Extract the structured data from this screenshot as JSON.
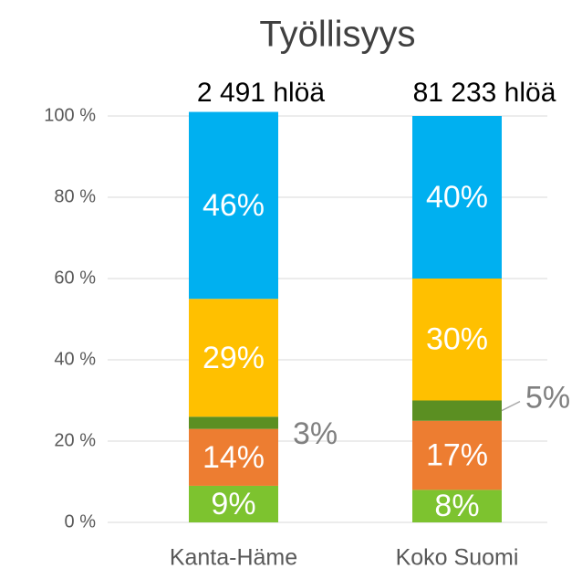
{
  "chart_data": {
    "type": "stacked_bar",
    "title": "Työllisyys",
    "categories": [
      "Kanta-Häme",
      "Koko Suomi"
    ],
    "annotations": [
      "2 491 hlöä",
      "81 233 hlöä"
    ],
    "series": [
      {
        "color": "#7dc32f",
        "values": [
          9,
          8
        ],
        "value_labels": [
          "9%",
          "8%"
        ]
      },
      {
        "color": "#ed7d31",
        "values": [
          14,
          17
        ],
        "value_labels": [
          "14%",
          "17%"
        ]
      },
      {
        "color": "#5b8f22",
        "values": [
          3,
          5
        ],
        "value_labels": [
          "3%",
          "5%"
        ]
      },
      {
        "color": "#ffc000",
        "values": [
          29,
          30
        ],
        "value_labels": [
          "29%",
          "30%"
        ]
      },
      {
        "color": "#00b0f0",
        "values": [
          46,
          40
        ],
        "value_labels": [
          "46%",
          "40%"
        ]
      }
    ],
    "ylim": [
      0,
      100
    ],
    "yticks": [
      {
        "value": 0,
        "label": "0 %"
      },
      {
        "value": 20,
        "label": "20 %"
      },
      {
        "value": 40,
        "label": "40 %"
      },
      {
        "value": 60,
        "label": "60 %"
      },
      {
        "value": 80,
        "label": "80 %"
      },
      {
        "value": 100,
        "label": "100 %"
      }
    ],
    "grid": true
  }
}
